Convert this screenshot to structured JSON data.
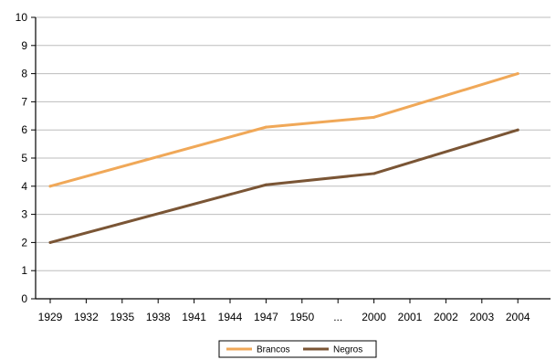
{
  "chart_data": {
    "type": "line",
    "categories": [
      "1929",
      "1932",
      "1935",
      "1938",
      "1941",
      "1944",
      "1947",
      "1950",
      "...",
      "2000",
      "2001",
      "2002",
      "2003",
      "2004"
    ],
    "series": [
      {
        "name": "Brancos",
        "color": "#F0A858",
        "points": [
          {
            "x": "1929",
            "y": 4.0
          },
          {
            "x": "1947",
            "y": 6.1
          },
          {
            "x": "2000",
            "y": 6.45
          },
          {
            "x": "2004",
            "y": 8.0
          }
        ]
      },
      {
        "name": "Negros",
        "color": "#7A5535",
        "points": [
          {
            "x": "1929",
            "y": 2.0
          },
          {
            "x": "1947",
            "y": 4.05
          },
          {
            "x": "2000",
            "y": 4.45
          },
          {
            "x": "2004",
            "y": 6.0
          }
        ]
      }
    ],
    "y_ticks": [
      "0",
      "1",
      "2",
      "3",
      "4",
      "5",
      "6",
      "7",
      "8",
      "9",
      "10"
    ],
    "ylim": [
      0,
      10
    ],
    "grid": true,
    "legend_position": "bottom-center"
  }
}
